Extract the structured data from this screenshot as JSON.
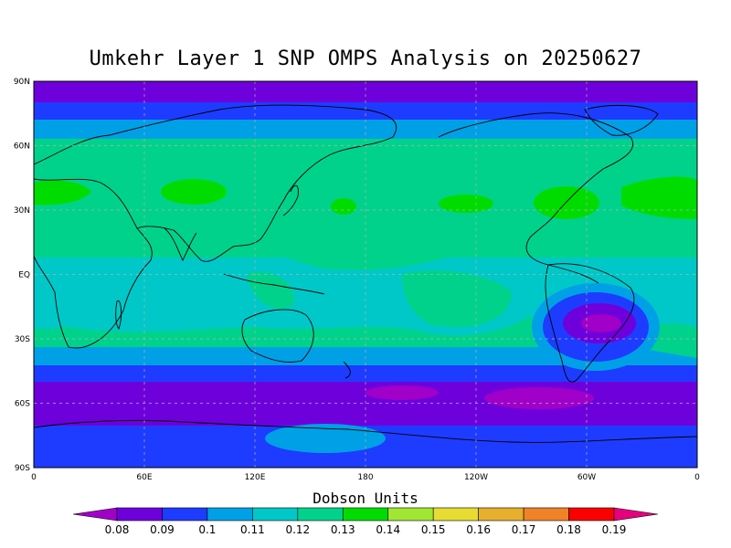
{
  "title": "Umkehr Layer 1 SNP OMPS Analysis on 20250627",
  "lat_labels": [
    "90N",
    "60N",
    "30N",
    "EQ",
    "30S",
    "60S",
    "90S"
  ],
  "lon_labels": [
    "0",
    "60E",
    "120E",
    "180",
    "120W",
    "60W",
    "0"
  ],
  "colorbar": {
    "title": "Dobson Units",
    "tick_labels": [
      "0.08",
      "0.09",
      "0.1",
      "0.11",
      "0.12",
      "0.13",
      "0.14",
      "0.15",
      "0.16",
      "0.17",
      "0.18",
      "0.19"
    ],
    "colors": [
      "#a000c8",
      "#6e00dc",
      "#1e3cff",
      "#00a0e6",
      "#00c8c8",
      "#00d28c",
      "#00dc00",
      "#a0e632",
      "#e6dc32",
      "#e6af2d",
      "#f08228",
      "#fa0000",
      "#e6007d"
    ]
  },
  "legend_colors": {
    "below_008": "#a000c8",
    "c008_009": "#6e00dc",
    "c009_010": "#1e3cff",
    "c010_011": "#00a0e6",
    "c011_012": "#00c8c8",
    "c012_013": "#00d28c",
    "c013_014": "#00dc00"
  }
}
